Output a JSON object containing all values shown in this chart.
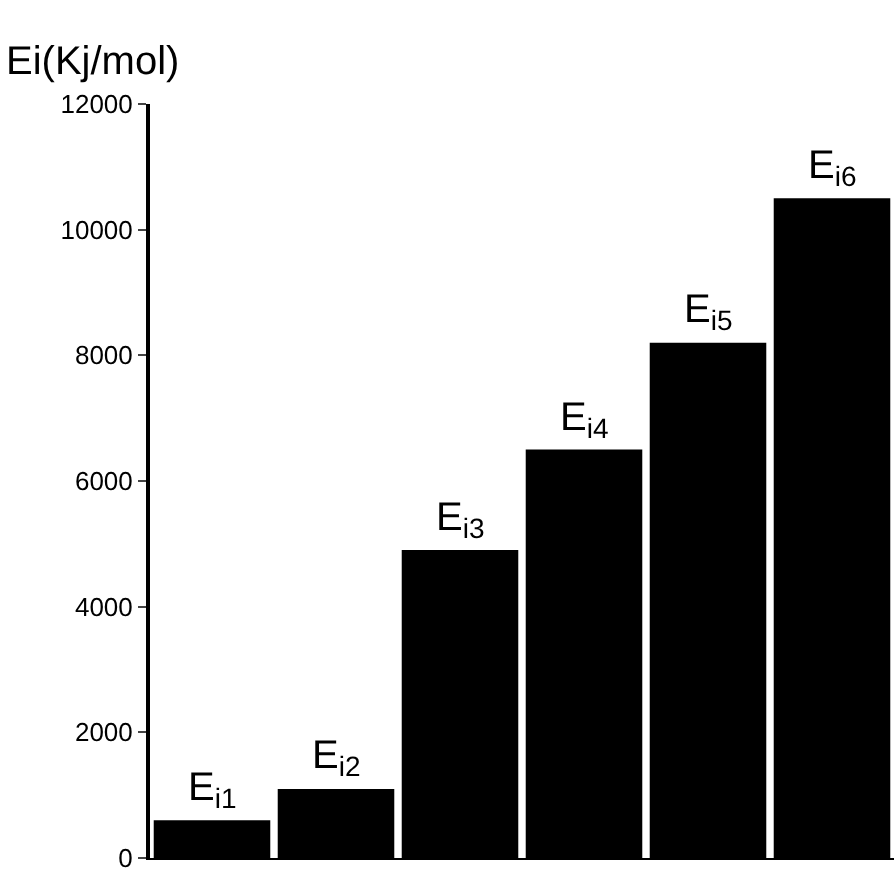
{
  "chart_data": {
    "type": "bar",
    "ylabel": "Ei(Kj/mol)",
    "categories": [
      "E$_{i1}$",
      "E$_{i2}$",
      "E$_{i3}$",
      "E$_{i4}$",
      "E$_{i5}$",
      "E$_{i6}$"
    ],
    "values": [
      600,
      1100,
      4900,
      6500,
      8200,
      10500
    ],
    "color": "#000000",
    "ylim": [
      0,
      12000
    ],
    "yticks": [
      0,
      2000,
      4000,
      6000,
      8000,
      10000,
      12000
    ],
    "tick_labels": "y"
  }
}
